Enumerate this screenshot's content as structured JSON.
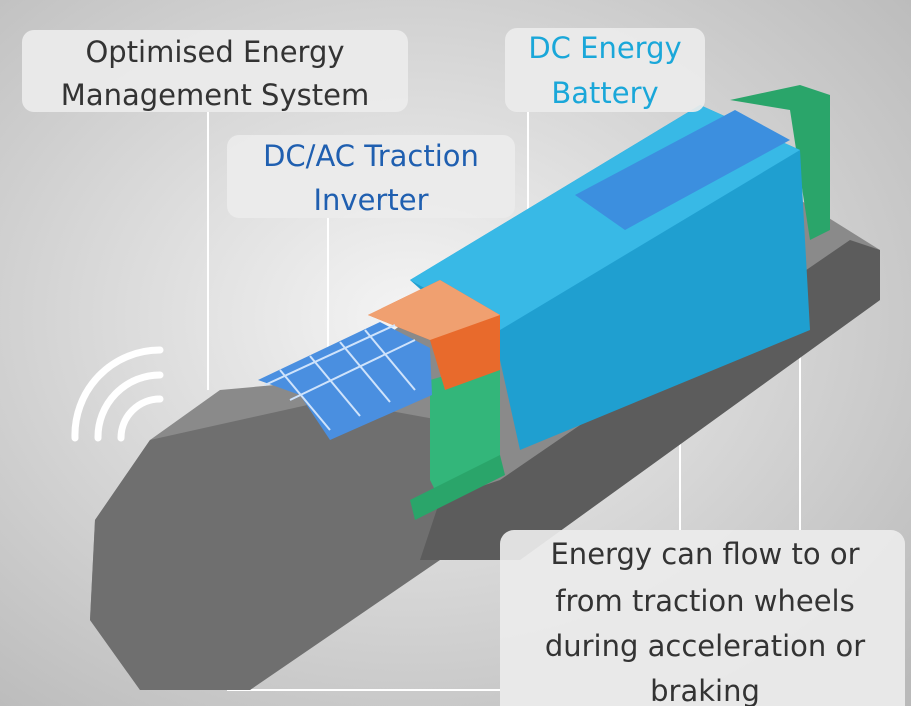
{
  "labels": [
    {
      "lines": [
        "Optimised Energy",
        "Management System"
      ]
    },
    {
      "lines": [
        "DC Energy",
        "Battery"
      ]
    },
    {
      "lines": [
        "DC/AC Traction",
        "Inverter"
      ]
    },
    {
      "lines": [
        "Energy can flow to or",
        "from traction wheels",
        "during acceleration or",
        "braking"
      ]
    }
  ]
}
